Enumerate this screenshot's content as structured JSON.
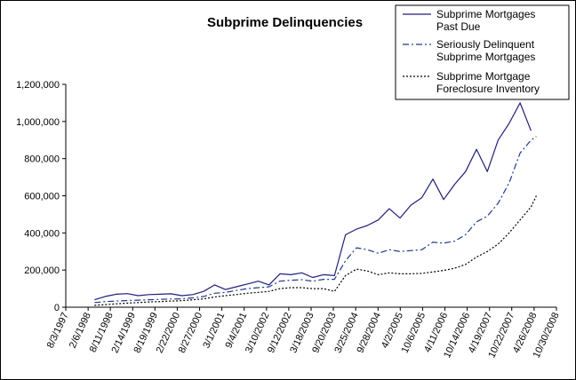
{
  "chart_data": {
    "type": "line",
    "title": "Subprime Delinquencies",
    "xlabel": "",
    "ylabel": "",
    "ylim": [
      0,
      1200000
    ],
    "yticks": [
      0,
      200000,
      400000,
      600000,
      800000,
      1000000,
      1200000
    ],
    "ytick_labels": [
      "0",
      "200,000",
      "400,000",
      "600,000",
      "800,000",
      "1,000,000",
      "1,200,000"
    ],
    "xlim": [
      "1997-08-03",
      "2008-10-30"
    ],
    "xtick_labels": [
      "8/3/1997",
      "2/6/1998",
      "8/11/1998",
      "2/14/1999",
      "8/19/1999",
      "2/22/2000",
      "8/27/2000",
      "3/1/2001",
      "9/4/2001",
      "3/10/2002",
      "9/12/2002",
      "3/18/2003",
      "9/20/2003",
      "3/25/2004",
      "9/28/2004",
      "4/2/2005",
      "10/6/2005",
      "4/11/2006",
      "10/14/2006",
      "4/19/2007",
      "10/22/2007",
      "4/26/2008",
      "10/30/2008"
    ],
    "grid": false,
    "legend_position": "top-right",
    "series": [
      {
        "name": "Subprime Mortgages Past Due",
        "color": "#1f1f7a",
        "style": "solid",
        "points": [
          [
            "1998-03-31",
            40000
          ],
          [
            "1998-06-30",
            58000
          ],
          [
            "1998-09-30",
            70000
          ],
          [
            "1998-12-31",
            73000
          ],
          [
            "1999-03-31",
            62000
          ],
          [
            "1999-06-30",
            68000
          ],
          [
            "1999-09-30",
            70000
          ],
          [
            "1999-12-31",
            72000
          ],
          [
            "2000-03-31",
            62000
          ],
          [
            "2000-06-30",
            68000
          ],
          [
            "2000-09-30",
            85000
          ],
          [
            "2000-12-31",
            120000
          ],
          [
            "2001-03-31",
            95000
          ],
          [
            "2001-06-30",
            110000
          ],
          [
            "2001-09-30",
            125000
          ],
          [
            "2001-12-31",
            140000
          ],
          [
            "2002-03-31",
            120000
          ],
          [
            "2002-06-30",
            180000
          ],
          [
            "2002-09-30",
            175000
          ],
          [
            "2002-12-31",
            185000
          ],
          [
            "2003-03-31",
            160000
          ],
          [
            "2003-06-30",
            175000
          ],
          [
            "2003-09-30",
            170000
          ],
          [
            "2003-12-31",
            390000
          ],
          [
            "2004-03-31",
            420000
          ],
          [
            "2004-06-30",
            440000
          ],
          [
            "2004-09-30",
            470000
          ],
          [
            "2004-12-31",
            530000
          ],
          [
            "2005-03-31",
            480000
          ],
          [
            "2005-06-30",
            550000
          ],
          [
            "2005-09-30",
            590000
          ],
          [
            "2005-12-31",
            690000
          ],
          [
            "2006-03-31",
            580000
          ],
          [
            "2006-06-30",
            660000
          ],
          [
            "2006-09-30",
            730000
          ],
          [
            "2006-12-31",
            850000
          ],
          [
            "2007-03-31",
            730000
          ],
          [
            "2007-06-30",
            900000
          ],
          [
            "2007-09-30",
            990000
          ],
          [
            "2007-12-31",
            1100000
          ],
          [
            "2008-03-31",
            950000
          ]
        ]
      },
      {
        "name": "Seriously Delinquent Subprime Mortgages",
        "color": "#1f3a8a",
        "style": "dashdot",
        "points": [
          [
            "1998-03-31",
            25000
          ],
          [
            "1998-06-30",
            30000
          ],
          [
            "1998-09-30",
            33000
          ],
          [
            "1998-12-31",
            36000
          ],
          [
            "1999-03-31",
            38000
          ],
          [
            "1999-06-30",
            40000
          ],
          [
            "1999-09-30",
            42000
          ],
          [
            "1999-12-31",
            44000
          ],
          [
            "2000-03-31",
            45000
          ],
          [
            "2000-06-30",
            50000
          ],
          [
            "2000-09-30",
            58000
          ],
          [
            "2000-12-31",
            75000
          ],
          [
            "2001-03-31",
            80000
          ],
          [
            "2001-06-30",
            90000
          ],
          [
            "2001-09-30",
            100000
          ],
          [
            "2001-12-31",
            105000
          ],
          [
            "2002-03-31",
            110000
          ],
          [
            "2002-06-30",
            140000
          ],
          [
            "2002-09-30",
            145000
          ],
          [
            "2002-12-31",
            148000
          ],
          [
            "2003-03-31",
            140000
          ],
          [
            "2003-06-30",
            150000
          ],
          [
            "2003-09-30",
            150000
          ],
          [
            "2003-12-31",
            250000
          ],
          [
            "2004-03-31",
            320000
          ],
          [
            "2004-06-30",
            310000
          ],
          [
            "2004-09-30",
            290000
          ],
          [
            "2004-12-31",
            310000
          ],
          [
            "2005-03-31",
            300000
          ],
          [
            "2005-06-30",
            305000
          ],
          [
            "2005-09-30",
            310000
          ],
          [
            "2005-12-31",
            350000
          ],
          [
            "2006-03-31",
            345000
          ],
          [
            "2006-06-30",
            355000
          ],
          [
            "2006-09-30",
            390000
          ],
          [
            "2006-12-31",
            460000
          ],
          [
            "2007-03-31",
            490000
          ],
          [
            "2007-06-30",
            560000
          ],
          [
            "2007-09-30",
            670000
          ],
          [
            "2007-12-31",
            830000
          ],
          [
            "2008-03-31",
            900000
          ],
          [
            "2008-05-15",
            920000
          ]
        ]
      },
      {
        "name": "Subprime Mortgage Foreclosure Inventory",
        "color": "#000000",
        "style": "dotted",
        "points": [
          [
            "1998-03-31",
            10000
          ],
          [
            "1998-06-30",
            14000
          ],
          [
            "1998-09-30",
            18000
          ],
          [
            "1998-12-31",
            22000
          ],
          [
            "1999-03-31",
            25000
          ],
          [
            "1999-06-30",
            28000
          ],
          [
            "1999-09-30",
            30000
          ],
          [
            "1999-12-31",
            33000
          ],
          [
            "2000-03-31",
            35000
          ],
          [
            "2000-06-30",
            40000
          ],
          [
            "2000-09-30",
            45000
          ],
          [
            "2000-12-31",
            55000
          ],
          [
            "2001-03-31",
            62000
          ],
          [
            "2001-06-30",
            68000
          ],
          [
            "2001-09-30",
            75000
          ],
          [
            "2001-12-31",
            80000
          ],
          [
            "2002-03-31",
            85000
          ],
          [
            "2002-06-30",
            100000
          ],
          [
            "2002-09-30",
            105000
          ],
          [
            "2002-12-31",
            105000
          ],
          [
            "2003-03-31",
            100000
          ],
          [
            "2003-06-30",
            100000
          ],
          [
            "2003-09-30",
            85000
          ],
          [
            "2003-12-31",
            170000
          ],
          [
            "2004-03-31",
            205000
          ],
          [
            "2004-06-30",
            195000
          ],
          [
            "2004-09-30",
            175000
          ],
          [
            "2004-12-31",
            185000
          ],
          [
            "2005-03-31",
            180000
          ],
          [
            "2005-06-30",
            180000
          ],
          [
            "2005-09-30",
            182000
          ],
          [
            "2005-12-31",
            190000
          ],
          [
            "2006-03-31",
            198000
          ],
          [
            "2006-06-30",
            210000
          ],
          [
            "2006-09-30",
            230000
          ],
          [
            "2006-12-31",
            270000
          ],
          [
            "2007-03-31",
            300000
          ],
          [
            "2007-06-30",
            340000
          ],
          [
            "2007-09-30",
            400000
          ],
          [
            "2007-12-31",
            470000
          ],
          [
            "2008-03-31",
            540000
          ],
          [
            "2008-05-15",
            600000
          ]
        ]
      }
    ]
  }
}
